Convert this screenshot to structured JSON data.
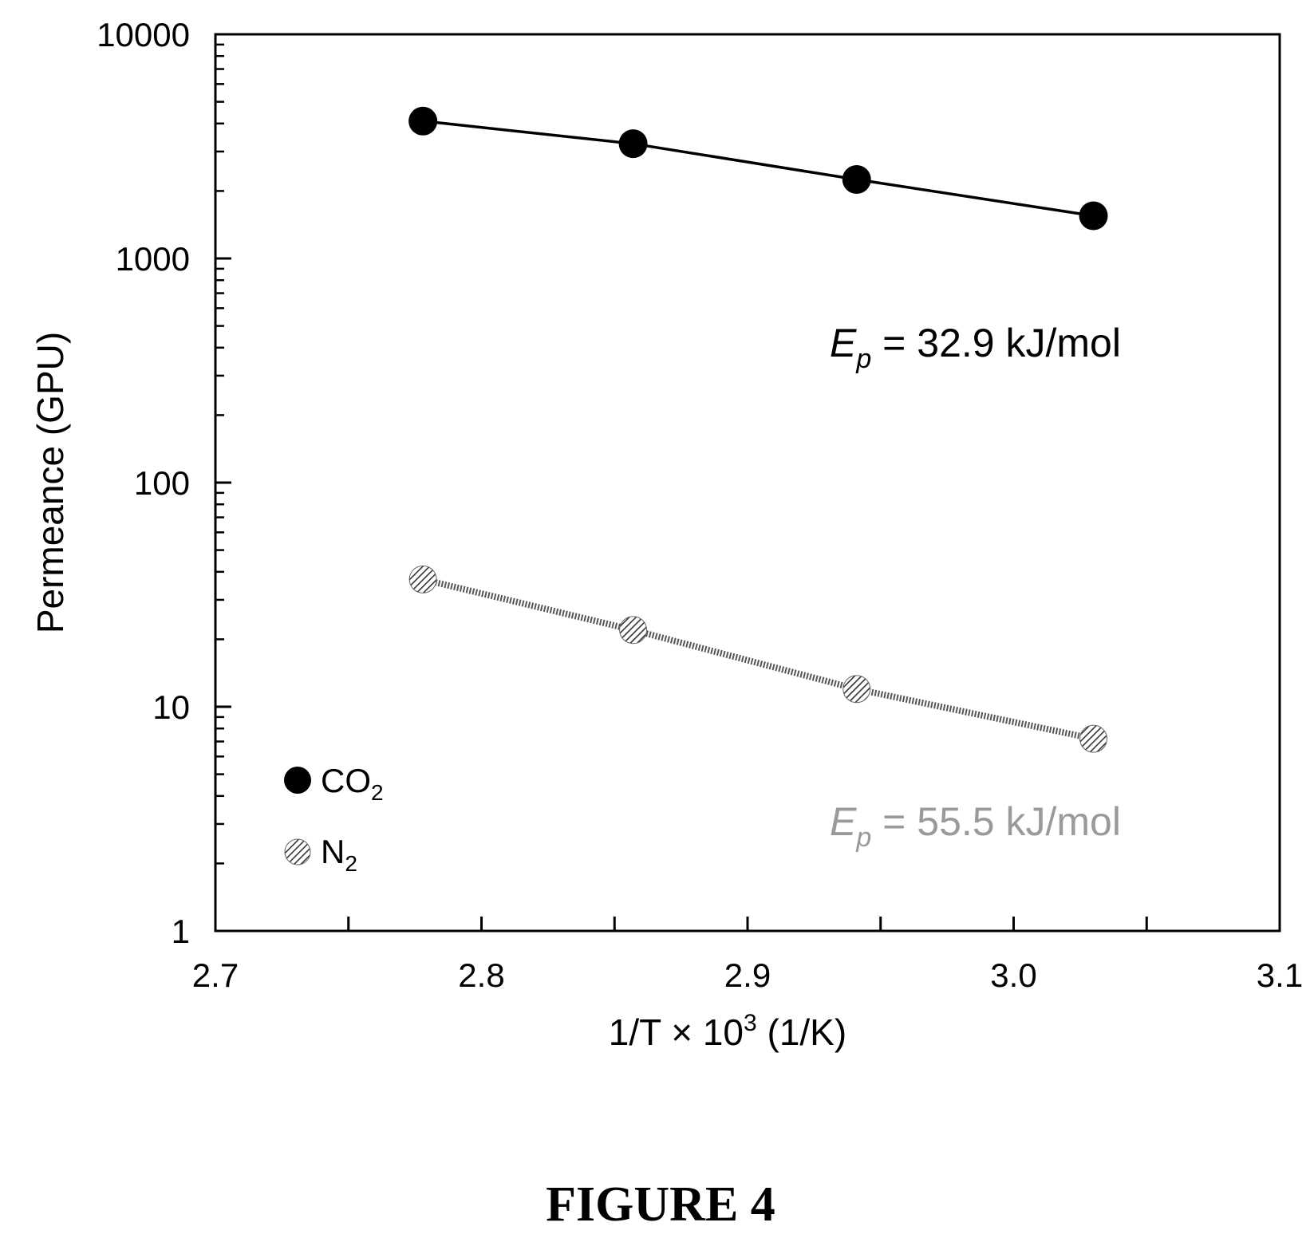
{
  "chart_data": {
    "type": "scatter",
    "title": "",
    "xlabel_parts": [
      "1/T × 10",
      "3",
      " (1/K)"
    ],
    "ylabel": "Permeance (GPU)",
    "xlim": [
      2.7,
      3.1
    ],
    "ylim": [
      1,
      10000
    ],
    "yscale": "log",
    "grid": false,
    "legend_placement": "bottom-left",
    "x_ticks": [
      2.7,
      2.75,
      2.8,
      2.85,
      2.9,
      2.95,
      3.0,
      3.05,
      3.1
    ],
    "x_tick_labels": [
      {
        "value": 2.7,
        "label": "2.7"
      },
      {
        "value": 2.8,
        "label": "2.8"
      },
      {
        "value": 2.9,
        "label": "2.9"
      },
      {
        "value": 3.0,
        "label": "3.0"
      },
      {
        "value": 3.1,
        "label": "3.1"
      }
    ],
    "y_tick_labels": [
      {
        "value": 1,
        "label": "1"
      },
      {
        "value": 10,
        "label": "10"
      },
      {
        "value": 100,
        "label": "100"
      },
      {
        "value": 1000,
        "label": "1000"
      },
      {
        "value": 10000,
        "label": "10000"
      }
    ],
    "series": [
      {
        "legend_base": "CO",
        "legend_sub": "2",
        "marker": "filled-circle",
        "color": "#000000",
        "x": [
          2.778,
          2.857,
          2.941,
          3.03
        ],
        "y": [
          4100,
          3250,
          2250,
          1550
        ]
      },
      {
        "legend_base": "N",
        "legend_sub": "2",
        "marker": "hatched-circle",
        "color": "#555555",
        "x": [
          2.778,
          2.857,
          2.941,
          3.03
        ],
        "y": [
          37,
          22,
          12,
          7.2
        ]
      }
    ],
    "annotations": [
      {
        "series": 0,
        "var": "E",
        "sub": "p",
        "text": " = 32.9 kJ/mol",
        "color": "#000000"
      },
      {
        "series": 1,
        "var": "E",
        "sub": "p",
        "text": " = 55.5 kJ/mol",
        "color": "#9a9a9a"
      }
    ]
  },
  "figure_caption": "FIGURE 4"
}
